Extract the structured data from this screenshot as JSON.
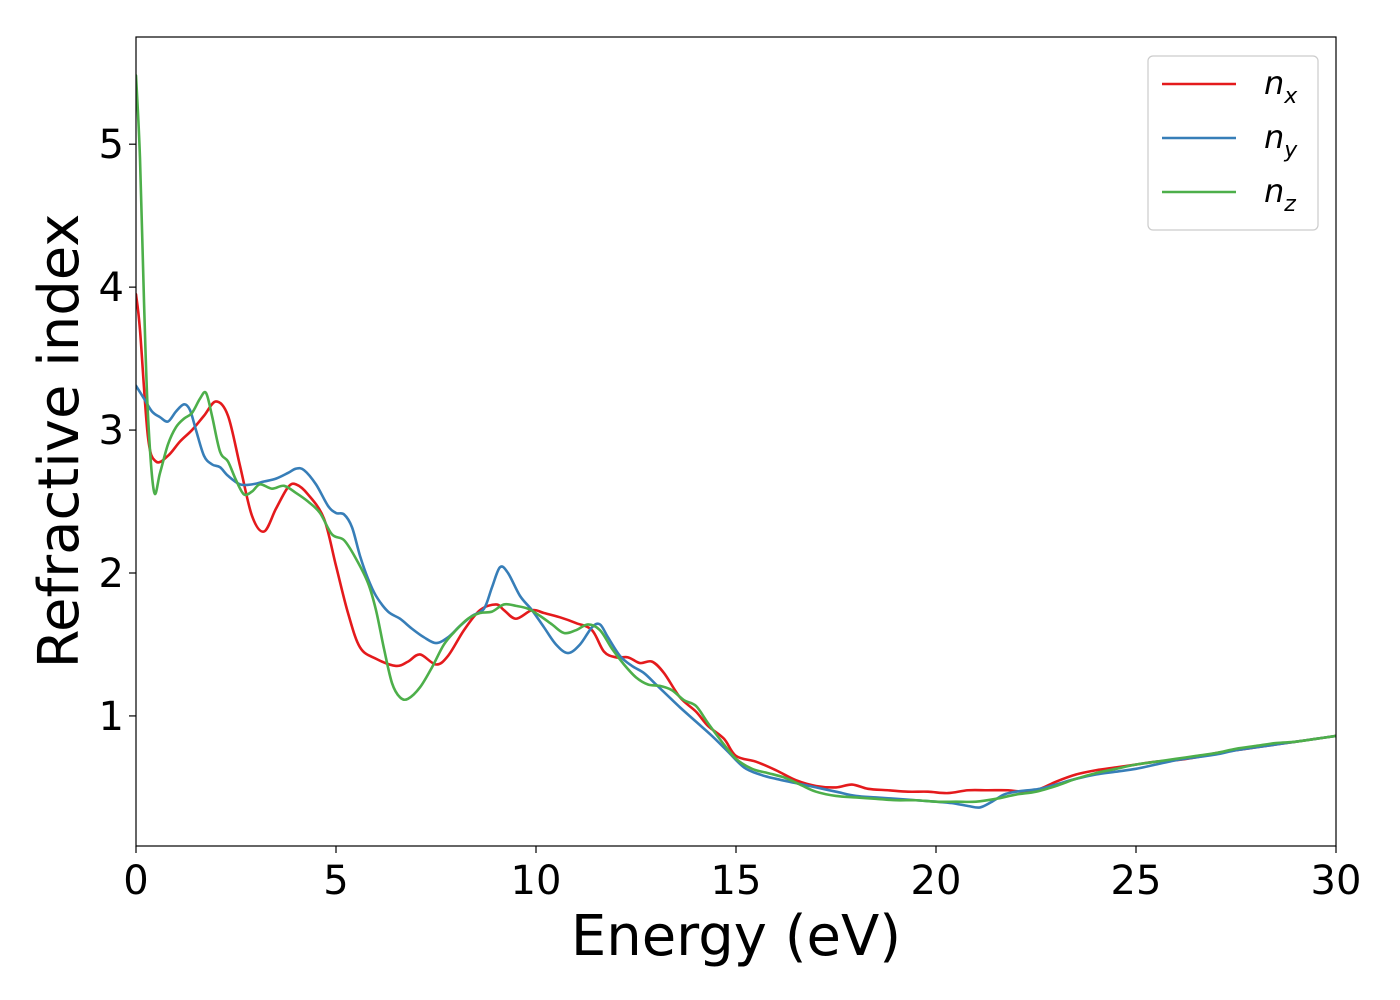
{
  "chart_data": {
    "type": "line",
    "title": "",
    "xlabel": "Energy (eV)",
    "ylabel": "Refractive index",
    "xlim": [
      0,
      30
    ],
    "ylim": [
      0.09,
      5.75
    ],
    "xticks": [
      0,
      5,
      10,
      15,
      20,
      25,
      30
    ],
    "xtick_labels": [
      "0",
      "5",
      "10",
      "15",
      "20",
      "25",
      "30"
    ],
    "yticks": [
      1,
      2,
      3,
      4,
      5
    ],
    "ytick_labels": [
      "1",
      "2",
      "3",
      "4",
      "5"
    ],
    "grid": false,
    "legend": {
      "placement": "top-right",
      "entries": [
        {
          "base": "n",
          "sub": "x"
        },
        {
          "base": "n",
          "sub": "y"
        },
        {
          "base": "n",
          "sub": "z"
        }
      ]
    },
    "series": [
      {
        "name": "n_x",
        "color": "#e41a1c",
        "points": [
          [
            0,
            3.95
          ],
          [
            0.1,
            3.7
          ],
          [
            0.3,
            2.95
          ],
          [
            0.5,
            2.78
          ],
          [
            0.8,
            2.82
          ],
          [
            1.1,
            2.92
          ],
          [
            1.4,
            3.0
          ],
          [
            1.7,
            3.1
          ],
          [
            2.0,
            3.2
          ],
          [
            2.3,
            3.1
          ],
          [
            2.6,
            2.75
          ],
          [
            2.9,
            2.4
          ],
          [
            3.2,
            2.29
          ],
          [
            3.5,
            2.45
          ],
          [
            3.8,
            2.6
          ],
          [
            4.0,
            2.62
          ],
          [
            4.3,
            2.55
          ],
          [
            4.7,
            2.38
          ],
          [
            5.0,
            2.05
          ],
          [
            5.3,
            1.72
          ],
          [
            5.6,
            1.48
          ],
          [
            6.0,
            1.4
          ],
          [
            6.5,
            1.35
          ],
          [
            6.8,
            1.38
          ],
          [
            7.1,
            1.43
          ],
          [
            7.5,
            1.36
          ],
          [
            7.8,
            1.42
          ],
          [
            8.2,
            1.6
          ],
          [
            8.6,
            1.74
          ],
          [
            9.0,
            1.78
          ],
          [
            9.2,
            1.74
          ],
          [
            9.5,
            1.68
          ],
          [
            9.9,
            1.74
          ],
          [
            10.2,
            1.72
          ],
          [
            10.6,
            1.69
          ],
          [
            11.0,
            1.65
          ],
          [
            11.4,
            1.6
          ],
          [
            11.7,
            1.45
          ],
          [
            12.0,
            1.41
          ],
          [
            12.3,
            1.41
          ],
          [
            12.6,
            1.37
          ],
          [
            12.9,
            1.38
          ],
          [
            13.2,
            1.3
          ],
          [
            13.6,
            1.13
          ],
          [
            14.0,
            1.03
          ],
          [
            14.3,
            0.93
          ],
          [
            14.7,
            0.84
          ],
          [
            15.0,
            0.72
          ],
          [
            15.5,
            0.68
          ],
          [
            16.0,
            0.62
          ],
          [
            16.5,
            0.55
          ],
          [
            17.0,
            0.51
          ],
          [
            17.5,
            0.5
          ],
          [
            17.9,
            0.52
          ],
          [
            18.3,
            0.49
          ],
          [
            18.8,
            0.48
          ],
          [
            19.3,
            0.47
          ],
          [
            19.8,
            0.47
          ],
          [
            20.3,
            0.46
          ],
          [
            20.8,
            0.48
          ],
          [
            21.3,
            0.48
          ],
          [
            21.8,
            0.48
          ],
          [
            22.2,
            0.47
          ],
          [
            22.6,
            0.49
          ],
          [
            23.0,
            0.54
          ],
          [
            23.5,
            0.59
          ],
          [
            24.0,
            0.62
          ],
          [
            24.5,
            0.64
          ],
          [
            25.0,
            0.66
          ],
          [
            25.5,
            0.68
          ],
          [
            26.0,
            0.69
          ],
          [
            26.5,
            0.71
          ],
          [
            27.0,
            0.74
          ],
          [
            27.5,
            0.76
          ],
          [
            28.0,
            0.78
          ],
          [
            28.5,
            0.8
          ],
          [
            29.0,
            0.82
          ],
          [
            29.5,
            0.84
          ],
          [
            30.0,
            0.86
          ]
        ]
      },
      {
        "name": "n_y",
        "color": "#377eb8",
        "points": [
          [
            0,
            3.31
          ],
          [
            0.2,
            3.22
          ],
          [
            0.4,
            3.13
          ],
          [
            0.6,
            3.09
          ],
          [
            0.8,
            3.06
          ],
          [
            1.0,
            3.13
          ],
          [
            1.2,
            3.18
          ],
          [
            1.35,
            3.14
          ],
          [
            1.5,
            3.0
          ],
          [
            1.7,
            2.82
          ],
          [
            1.9,
            2.76
          ],
          [
            2.1,
            2.74
          ],
          [
            2.3,
            2.68
          ],
          [
            2.6,
            2.62
          ],
          [
            2.9,
            2.62
          ],
          [
            3.2,
            2.64
          ],
          [
            3.5,
            2.66
          ],
          [
            3.8,
            2.7
          ],
          [
            4.0,
            2.73
          ],
          [
            4.2,
            2.72
          ],
          [
            4.5,
            2.62
          ],
          [
            4.8,
            2.47
          ],
          [
            5.0,
            2.42
          ],
          [
            5.2,
            2.41
          ],
          [
            5.4,
            2.32
          ],
          [
            5.6,
            2.12
          ],
          [
            5.8,
            1.96
          ],
          [
            6.0,
            1.84
          ],
          [
            6.3,
            1.73
          ],
          [
            6.6,
            1.68
          ],
          [
            6.9,
            1.61
          ],
          [
            7.2,
            1.55
          ],
          [
            7.5,
            1.51
          ],
          [
            7.8,
            1.55
          ],
          [
            8.1,
            1.63
          ],
          [
            8.4,
            1.7
          ],
          [
            8.7,
            1.75
          ],
          [
            8.9,
            1.9
          ],
          [
            9.1,
            2.04
          ],
          [
            9.3,
            2.0
          ],
          [
            9.6,
            1.84
          ],
          [
            9.9,
            1.74
          ],
          [
            10.2,
            1.62
          ],
          [
            10.5,
            1.5
          ],
          [
            10.8,
            1.44
          ],
          [
            11.1,
            1.5
          ],
          [
            11.4,
            1.62
          ],
          [
            11.6,
            1.64
          ],
          [
            11.8,
            1.55
          ],
          [
            12.1,
            1.42
          ],
          [
            12.4,
            1.35
          ],
          [
            12.7,
            1.3
          ],
          [
            13.0,
            1.22
          ],
          [
            13.3,
            1.14
          ],
          [
            13.6,
            1.06
          ],
          [
            14.0,
            0.96
          ],
          [
            14.4,
            0.86
          ],
          [
            14.8,
            0.75
          ],
          [
            15.2,
            0.64
          ],
          [
            15.6,
            0.59
          ],
          [
            16.0,
            0.56
          ],
          [
            16.5,
            0.53
          ],
          [
            17.0,
            0.5
          ],
          [
            17.5,
            0.47
          ],
          [
            18.0,
            0.44
          ],
          [
            18.5,
            0.43
          ],
          [
            19.0,
            0.42
          ],
          [
            19.5,
            0.41
          ],
          [
            20.0,
            0.4
          ],
          [
            20.4,
            0.39
          ],
          [
            20.8,
            0.37
          ],
          [
            21.1,
            0.36
          ],
          [
            21.4,
            0.4
          ],
          [
            21.7,
            0.45
          ],
          [
            22.0,
            0.47
          ],
          [
            22.3,
            0.48
          ],
          [
            22.6,
            0.49
          ],
          [
            23.0,
            0.52
          ],
          [
            23.5,
            0.56
          ],
          [
            24.0,
            0.59
          ],
          [
            24.5,
            0.61
          ],
          [
            25.0,
            0.63
          ],
          [
            25.5,
            0.66
          ],
          [
            26.0,
            0.69
          ],
          [
            26.5,
            0.71
          ],
          [
            27.0,
            0.73
          ],
          [
            27.5,
            0.76
          ],
          [
            28.0,
            0.78
          ],
          [
            28.5,
            0.8
          ],
          [
            29.0,
            0.82
          ],
          [
            29.5,
            0.84
          ],
          [
            30.0,
            0.86
          ]
        ]
      },
      {
        "name": "n_z",
        "color": "#4daf4a",
        "points": [
          [
            0,
            5.48
          ],
          [
            0.1,
            4.9
          ],
          [
            0.2,
            3.9
          ],
          [
            0.3,
            3.1
          ],
          [
            0.45,
            2.57
          ],
          [
            0.6,
            2.7
          ],
          [
            0.8,
            2.9
          ],
          [
            1.0,
            3.02
          ],
          [
            1.2,
            3.08
          ],
          [
            1.4,
            3.12
          ],
          [
            1.6,
            3.22
          ],
          [
            1.75,
            3.26
          ],
          [
            1.9,
            3.1
          ],
          [
            2.1,
            2.85
          ],
          [
            2.3,
            2.78
          ],
          [
            2.5,
            2.65
          ],
          [
            2.7,
            2.55
          ],
          [
            2.9,
            2.57
          ],
          [
            3.1,
            2.62
          ],
          [
            3.4,
            2.59
          ],
          [
            3.7,
            2.61
          ],
          [
            4.0,
            2.56
          ],
          [
            4.3,
            2.5
          ],
          [
            4.6,
            2.42
          ],
          [
            4.9,
            2.27
          ],
          [
            5.2,
            2.23
          ],
          [
            5.5,
            2.1
          ],
          [
            5.8,
            1.93
          ],
          [
            6.0,
            1.74
          ],
          [
            6.2,
            1.47
          ],
          [
            6.4,
            1.23
          ],
          [
            6.6,
            1.13
          ],
          [
            6.8,
            1.12
          ],
          [
            7.1,
            1.2
          ],
          [
            7.4,
            1.34
          ],
          [
            7.7,
            1.5
          ],
          [
            8.0,
            1.6
          ],
          [
            8.3,
            1.68
          ],
          [
            8.6,
            1.72
          ],
          [
            8.9,
            1.73
          ],
          [
            9.2,
            1.78
          ],
          [
            9.5,
            1.77
          ],
          [
            9.8,
            1.75
          ],
          [
            10.1,
            1.7
          ],
          [
            10.4,
            1.64
          ],
          [
            10.7,
            1.58
          ],
          [
            11.0,
            1.6
          ],
          [
            11.3,
            1.64
          ],
          [
            11.6,
            1.6
          ],
          [
            11.9,
            1.47
          ],
          [
            12.2,
            1.36
          ],
          [
            12.5,
            1.27
          ],
          [
            12.8,
            1.22
          ],
          [
            13.1,
            1.21
          ],
          [
            13.4,
            1.18
          ],
          [
            13.7,
            1.11
          ],
          [
            14.0,
            1.07
          ],
          [
            14.3,
            0.95
          ],
          [
            14.7,
            0.8
          ],
          [
            15.0,
            0.7
          ],
          [
            15.4,
            0.63
          ],
          [
            15.8,
            0.6
          ],
          [
            16.2,
            0.57
          ],
          [
            16.6,
            0.52
          ],
          [
            17.0,
            0.47
          ],
          [
            17.5,
            0.44
          ],
          [
            18.0,
            0.43
          ],
          [
            18.5,
            0.42
          ],
          [
            19.0,
            0.41
          ],
          [
            19.5,
            0.41
          ],
          [
            20.0,
            0.4
          ],
          [
            20.5,
            0.4
          ],
          [
            21.0,
            0.4
          ],
          [
            21.5,
            0.42
          ],
          [
            22.0,
            0.45
          ],
          [
            22.5,
            0.47
          ],
          [
            23.0,
            0.51
          ],
          [
            23.5,
            0.56
          ],
          [
            24.0,
            0.6
          ],
          [
            24.5,
            0.63
          ],
          [
            25.0,
            0.66
          ],
          [
            25.5,
            0.68
          ],
          [
            26.0,
            0.7
          ],
          [
            26.5,
            0.72
          ],
          [
            27.0,
            0.74
          ],
          [
            27.5,
            0.77
          ],
          [
            28.0,
            0.79
          ],
          [
            28.5,
            0.81
          ],
          [
            29.0,
            0.82
          ],
          [
            29.5,
            0.84
          ],
          [
            30.0,
            0.86
          ]
        ]
      }
    ]
  }
}
